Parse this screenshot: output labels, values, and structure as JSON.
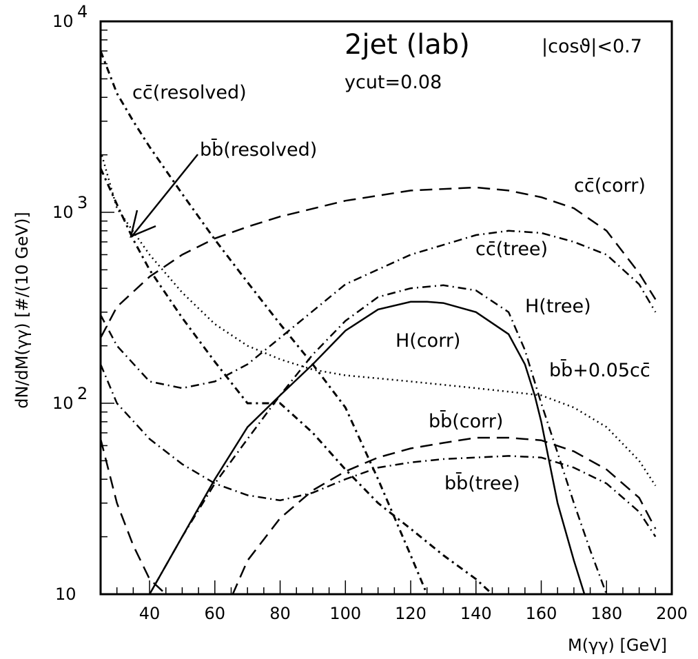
{
  "chart_data": {
    "type": "line",
    "xlabel": "M(γγ) [GeV]",
    "ylabel": "dN/dM(γγ) [#/(10 GeV)]",
    "xlim": [
      25,
      200
    ],
    "ylim": [
      10,
      10000
    ],
    "yscale": "log",
    "xticks": [
      "40",
      "60",
      "80",
      "100",
      "120",
      "140",
      "160",
      "180",
      "200"
    ],
    "xtick_values": [
      40,
      60,
      80,
      100,
      120,
      140,
      160,
      180,
      200
    ],
    "yticks": [
      {
        "base": "10",
        "exp": "4",
        "value": 10000
      },
      {
        "base": "10",
        "exp": "3",
        "value": 1000
      },
      {
        "base": "10",
        "exp": "2",
        "value": 100
      },
      {
        "base": "10",
        "exp": "",
        "value": 10
      }
    ],
    "annotations": {
      "title": "2jet (lab)",
      "cut": "ycut=0.08",
      "angle": "|cosϑ|<0.7"
    },
    "series": [
      {
        "name": "cc̄(resolved)",
        "style": "dashdot-dots",
        "x": [
          25,
          30,
          35,
          40,
          50,
          60,
          70,
          80,
          90,
          100,
          110,
          120,
          125
        ],
        "y": [
          7000,
          4200,
          3000,
          2200,
          1250,
          720,
          430,
          260,
          160,
          95,
          40,
          16,
          10
        ]
      },
      {
        "name": "bb̄(resolved)",
        "style": "dashdot-dots",
        "x": [
          25,
          30,
          35,
          40,
          50,
          60,
          70,
          80,
          90,
          100,
          110,
          120,
          130,
          140,
          145
        ],
        "y": [
          1700,
          1100,
          720,
          500,
          280,
          165,
          100,
          100,
          70,
          45,
          30,
          22,
          16,
          12,
          10
        ]
      },
      {
        "name": "cc̄(corr)",
        "style": "dashed",
        "x": [
          25,
          30,
          40,
          50,
          60,
          70,
          80,
          100,
          120,
          140,
          150,
          160,
          170,
          180,
          190,
          195
        ],
        "y": [
          220,
          320,
          460,
          600,
          730,
          840,
          950,
          1150,
          1300,
          1350,
          1300,
          1200,
          1050,
          800,
          480,
          350
        ]
      },
      {
        "name": "cc̄(tree)",
        "style": "dashdot",
        "x": [
          25,
          30,
          40,
          50,
          60,
          70,
          80,
          100,
          120,
          140,
          150,
          160,
          170,
          180,
          190,
          195
        ],
        "y": [
          290,
          200,
          130,
          120,
          130,
          160,
          220,
          420,
          600,
          760,
          800,
          780,
          700,
          600,
          420,
          300
        ]
      },
      {
        "name": "H(tree)",
        "style": "dashdot",
        "x": [
          35,
          40,
          50,
          60,
          70,
          80,
          90,
          100,
          110,
          120,
          130,
          140,
          150,
          155,
          160,
          165,
          170,
          175,
          180
        ],
        "y": [
          8,
          10,
          20,
          38,
          65,
          110,
          180,
          270,
          360,
          400,
          415,
          390,
          300,
          190,
          100,
          55,
          30,
          17,
          10
        ]
      },
      {
        "name": "H(corr)",
        "style": "solid",
        "x": [
          40,
          50,
          60,
          70,
          80,
          90,
          100,
          110,
          120,
          125,
          130,
          140,
          150,
          155,
          158,
          160,
          165,
          170,
          175
        ],
        "y": [
          10,
          20,
          40,
          75,
          110,
          160,
          240,
          310,
          340,
          340,
          335,
          300,
          230,
          160,
          110,
          80,
          30,
          15,
          8
        ]
      },
      {
        "name": "bb̄+0.05cc̄",
        "style": "dotted",
        "x": [
          25,
          30,
          40,
          50,
          60,
          70,
          80,
          90,
          100,
          110,
          120,
          130,
          140,
          150,
          160,
          170,
          180,
          190,
          195
        ],
        "y": [
          2100,
          1050,
          600,
          380,
          260,
          200,
          170,
          150,
          140,
          135,
          130,
          125,
          120,
          115,
          110,
          95,
          75,
          50,
          37
        ]
      },
      {
        "name": "bb̄(corr)",
        "style": "dashed",
        "x": [
          63,
          70,
          80,
          90,
          100,
          110,
          120,
          130,
          140,
          150,
          160,
          170,
          180,
          190,
          195
        ],
        "y": [
          8,
          15,
          25,
          35,
          44,
          52,
          58,
          62,
          66,
          66,
          64,
          56,
          45,
          32,
          22
        ]
      },
      {
        "name": "bb̄(tree)",
        "style": "dashdot",
        "x": [
          25,
          30,
          40,
          50,
          60,
          70,
          80,
          90,
          100,
          110,
          120,
          130,
          140,
          150,
          160,
          170,
          180,
          190,
          195
        ],
        "y": [
          160,
          100,
          65,
          48,
          38,
          33,
          31,
          34,
          40,
          46,
          49,
          51,
          52,
          53,
          52,
          46,
          38,
          27,
          20
        ]
      },
      {
        "name": "",
        "style": "dashed",
        "x": [
          25,
          30,
          35,
          40,
          45
        ],
        "y": [
          65,
          30,
          18,
          12,
          10
        ]
      }
    ]
  },
  "labels": {
    "cc_resolved": "cc̄(resolved)",
    "bb_resolved": "bb̄(resolved)",
    "cc_corr": "cc̄(corr)",
    "cc_tree": "cc̄(tree)",
    "h_tree": "H(tree)",
    "h_corr": "H(corr)",
    "bb_sum": "bb̄+0.05cc̄",
    "bb_corr": "bb̄(corr)",
    "bb_tree": "bb̄(tree)"
  }
}
